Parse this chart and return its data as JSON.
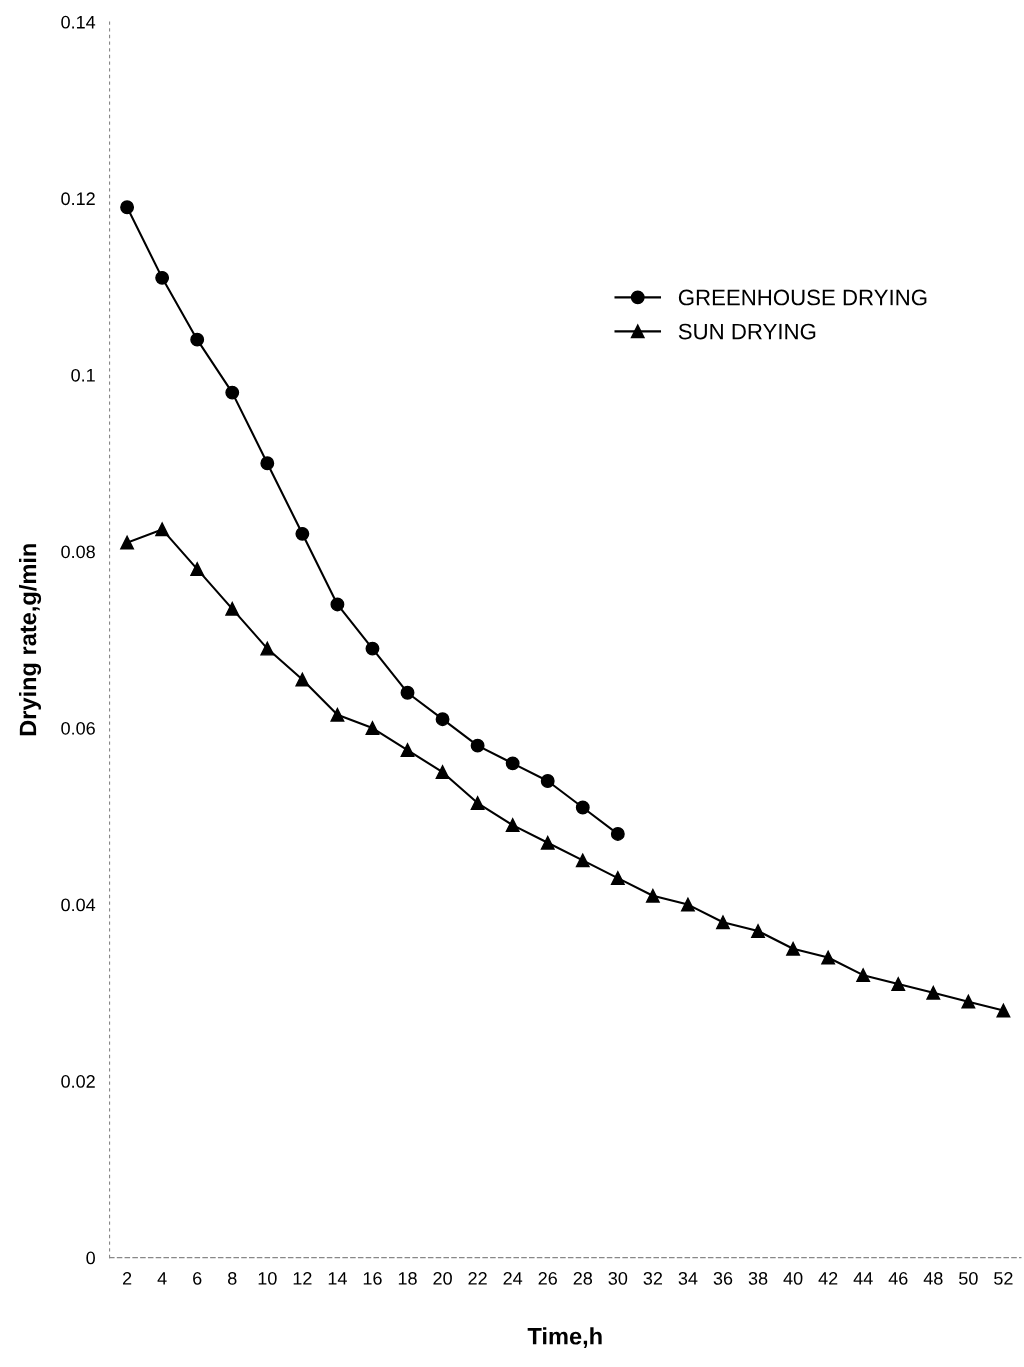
{
  "chart_data": {
    "type": "line",
    "xlabel": "Time,h",
    "ylabel": "Drying rate,g/min",
    "categories": [
      "2",
      "4",
      "6",
      "8",
      "10",
      "12",
      "14",
      "16",
      "18",
      "20",
      "22",
      "24",
      "26",
      "28",
      "30",
      "32",
      "34",
      "36",
      "38",
      "40",
      "42",
      "44",
      "46",
      "48",
      "50",
      "52"
    ],
    "series": [
      {
        "name": "GREENHOUSE DRYING",
        "color": "#000000",
        "marker": "circle",
        "values": [
          0.119,
          0.111,
          0.104,
          0.098,
          0.09,
          0.082,
          0.074,
          0.069,
          0.064,
          0.061,
          0.058,
          0.056,
          0.054,
          0.051,
          0.048,
          null,
          null,
          null,
          null,
          null,
          null,
          null,
          null,
          null,
          null,
          null
        ]
      },
      {
        "name": "SUN DRYING",
        "color": "#000000",
        "marker": "triangle",
        "values": [
          0.081,
          0.0825,
          0.078,
          0.0735,
          0.069,
          0.0655,
          0.0615,
          0.06,
          0.0575,
          0.055,
          0.0515,
          0.049,
          0.047,
          0.045,
          0.043,
          0.041,
          0.04,
          0.038,
          0.037,
          0.035,
          0.034,
          0.032,
          0.031,
          0.03,
          0.029,
          0.028
        ]
      }
    ],
    "ylim": [
      0,
      0.14
    ],
    "yticks": [
      0,
      0.02,
      0.04,
      0.06,
      0.08,
      {
        "value": 0.1,
        "label": "0.1"
      },
      0.12,
      0.14
    ],
    "grid": false,
    "legend": "top right",
    "line_style": "solid"
  }
}
